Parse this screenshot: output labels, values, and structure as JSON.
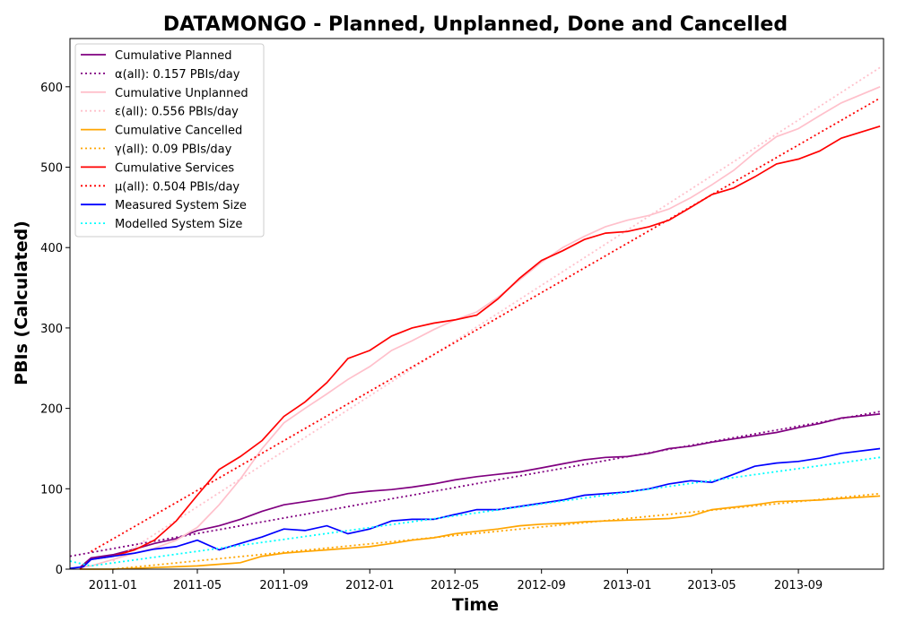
{
  "chart_data": {
    "type": "line",
    "title": "DATAMONGO - Planned, Unplanned, Done  and Cancelled",
    "xlabel": "Time",
    "ylabel": "PBIs (Calculated)",
    "x_start": "2010-11-01",
    "x_end": "2013-12-31",
    "ylim": [
      0,
      660
    ],
    "x_ticks": [
      "2011-01",
      "2011-05",
      "2011-09",
      "2012-01",
      "2012-05",
      "2012-09",
      "2013-01",
      "2013-05",
      "2013-09"
    ],
    "y_ticks": [
      0,
      100,
      200,
      300,
      400,
      500,
      600
    ],
    "grid": false,
    "legend_position": "top-left",
    "series": [
      {
        "name": "Cumulative Planned",
        "color": "#800080",
        "style": "solid",
        "points": [
          [
            "2010-11-15",
            2
          ],
          [
            "2010-12-01",
            14
          ],
          [
            "2011-01-01",
            18
          ],
          [
            "2011-02-01",
            25
          ],
          [
            "2011-03-01",
            32
          ],
          [
            "2011-04-01",
            38
          ],
          [
            "2011-05-01",
            48
          ],
          [
            "2011-06-01",
            54
          ],
          [
            "2011-07-01",
            62
          ],
          [
            "2011-08-01",
            72
          ],
          [
            "2011-09-01",
            80
          ],
          [
            "2011-10-01",
            84
          ],
          [
            "2011-11-01",
            88
          ],
          [
            "2011-12-01",
            94
          ],
          [
            "2012-01-01",
            97
          ],
          [
            "2012-02-01",
            99
          ],
          [
            "2012-03-01",
            102
          ],
          [
            "2012-04-01",
            106
          ],
          [
            "2012-05-01",
            111
          ],
          [
            "2012-06-01",
            115
          ],
          [
            "2012-07-01",
            118
          ],
          [
            "2012-08-01",
            121
          ],
          [
            "2012-09-01",
            126
          ],
          [
            "2012-10-01",
            131
          ],
          [
            "2012-11-01",
            136
          ],
          [
            "2012-12-01",
            139
          ],
          [
            "2013-01-01",
            140
          ],
          [
            "2013-02-01",
            144
          ],
          [
            "2013-03-01",
            150
          ],
          [
            "2013-04-01",
            153
          ],
          [
            "2013-05-01",
            158
          ],
          [
            "2013-06-01",
            162
          ],
          [
            "2013-07-01",
            166
          ],
          [
            "2013-08-01",
            170
          ],
          [
            "2013-09-01",
            176
          ],
          [
            "2013-10-01",
            181
          ],
          [
            "2013-11-01",
            188
          ],
          [
            "2013-12-26",
            193
          ]
        ]
      },
      {
        "name": "α(all): 0.157 PBIs/day",
        "color": "#800080",
        "style": "dotted",
        "points": [
          [
            "2010-11-01",
            16
          ],
          [
            "2013-12-26",
            196
          ]
        ]
      },
      {
        "name": "Cumulative Unplanned",
        "color": "#FFC0CB",
        "style": "solid",
        "points": [
          [
            "2010-11-15",
            2
          ],
          [
            "2010-12-01",
            4
          ],
          [
            "2011-01-01",
            12
          ],
          [
            "2011-02-01",
            20
          ],
          [
            "2011-03-01",
            26
          ],
          [
            "2011-04-01",
            36
          ],
          [
            "2011-05-01",
            52
          ],
          [
            "2011-06-01",
            80
          ],
          [
            "2011-07-01",
            112
          ],
          [
            "2011-08-01",
            150
          ],
          [
            "2011-09-01",
            182
          ],
          [
            "2011-10-01",
            200
          ],
          [
            "2011-11-01",
            218
          ],
          [
            "2011-12-01",
            236
          ],
          [
            "2012-01-01",
            252
          ],
          [
            "2012-02-01",
            272
          ],
          [
            "2012-03-01",
            284
          ],
          [
            "2012-04-01",
            298
          ],
          [
            "2012-05-01",
            310
          ],
          [
            "2012-06-01",
            320
          ],
          [
            "2012-07-01",
            338
          ],
          [
            "2012-08-01",
            360
          ],
          [
            "2012-09-01",
            382
          ],
          [
            "2012-10-01",
            400
          ],
          [
            "2012-11-01",
            414
          ],
          [
            "2012-12-01",
            426
          ],
          [
            "2013-01-01",
            434
          ],
          [
            "2013-02-01",
            440
          ],
          [
            "2013-03-01",
            448
          ],
          [
            "2013-04-01",
            462
          ],
          [
            "2013-05-01",
            478
          ],
          [
            "2013-06-01",
            496
          ],
          [
            "2013-07-01",
            518
          ],
          [
            "2013-08-01",
            538
          ],
          [
            "2013-09-01",
            548
          ],
          [
            "2013-10-01",
            564
          ],
          [
            "2013-11-01",
            580
          ],
          [
            "2013-12-26",
            600
          ]
        ]
      },
      {
        "name": "ε(all): 0.556 PBIs/day",
        "color": "#FFC0CB",
        "style": "dotted",
        "points": [
          [
            "2011-01-01",
            10
          ],
          [
            "2013-12-26",
            624
          ]
        ]
      },
      {
        "name": "Cumulative Cancelled",
        "color": "#FFA500",
        "style": "solid",
        "points": [
          [
            "2010-11-15",
            0
          ],
          [
            "2011-01-01",
            0
          ],
          [
            "2011-03-01",
            2
          ],
          [
            "2011-05-01",
            4
          ],
          [
            "2011-07-01",
            8
          ],
          [
            "2011-08-01",
            16
          ],
          [
            "2011-09-01",
            20
          ],
          [
            "2011-10-01",
            22
          ],
          [
            "2011-11-01",
            24
          ],
          [
            "2011-12-01",
            26
          ],
          [
            "2012-01-01",
            28
          ],
          [
            "2012-02-01",
            32
          ],
          [
            "2012-03-01",
            36
          ],
          [
            "2012-04-01",
            39
          ],
          [
            "2012-05-01",
            44
          ],
          [
            "2012-06-01",
            47
          ],
          [
            "2012-07-01",
            50
          ],
          [
            "2012-08-01",
            54
          ],
          [
            "2012-09-01",
            56
          ],
          [
            "2012-10-01",
            57
          ],
          [
            "2012-11-01",
            59
          ],
          [
            "2012-12-01",
            60
          ],
          [
            "2013-01-01",
            61
          ],
          [
            "2013-02-01",
            62
          ],
          [
            "2013-03-01",
            63
          ],
          [
            "2013-04-01",
            66
          ],
          [
            "2013-05-01",
            74
          ],
          [
            "2013-06-01",
            77
          ],
          [
            "2013-07-01",
            80
          ],
          [
            "2013-08-01",
            84
          ],
          [
            "2013-09-01",
            85
          ],
          [
            "2013-10-01",
            86
          ],
          [
            "2013-11-01",
            88
          ],
          [
            "2013-12-26",
            91
          ]
        ]
      },
      {
        "name": "γ(all): 0.09 PBIs/day",
        "color": "#FFA500",
        "style": "dotted",
        "points": [
          [
            "2011-01-01",
            0
          ],
          [
            "2013-12-26",
            94
          ]
        ]
      },
      {
        "name": "Cumulative Services",
        "color": "#FF0000",
        "style": "solid",
        "points": [
          [
            "2010-11-15",
            0
          ],
          [
            "2010-12-01",
            12
          ],
          [
            "2011-01-01",
            16
          ],
          [
            "2011-02-01",
            24
          ],
          [
            "2011-03-01",
            36
          ],
          [
            "2011-04-01",
            60
          ],
          [
            "2011-05-01",
            92
          ],
          [
            "2011-06-01",
            124
          ],
          [
            "2011-07-01",
            140
          ],
          [
            "2011-08-01",
            160
          ],
          [
            "2011-09-01",
            190
          ],
          [
            "2011-10-01",
            208
          ],
          [
            "2011-11-01",
            232
          ],
          [
            "2011-12-01",
            262
          ],
          [
            "2012-01-01",
            272
          ],
          [
            "2012-02-01",
            290
          ],
          [
            "2012-03-01",
            300
          ],
          [
            "2012-04-01",
            306
          ],
          [
            "2012-05-01",
            310
          ],
          [
            "2012-06-01",
            316
          ],
          [
            "2012-07-01",
            336
          ],
          [
            "2012-08-01",
            362
          ],
          [
            "2012-09-01",
            384
          ],
          [
            "2012-10-01",
            396
          ],
          [
            "2012-11-01",
            410
          ],
          [
            "2012-12-01",
            418
          ],
          [
            "2013-01-01",
            420
          ],
          [
            "2013-02-01",
            426
          ],
          [
            "2013-03-01",
            434
          ],
          [
            "2013-04-01",
            450
          ],
          [
            "2013-05-01",
            466
          ],
          [
            "2013-06-01",
            474
          ],
          [
            "2013-07-01",
            488
          ],
          [
            "2013-08-01",
            504
          ],
          [
            "2013-09-01",
            510
          ],
          [
            "2013-10-01",
            520
          ],
          [
            "2013-11-01",
            536
          ],
          [
            "2013-12-26",
            551
          ]
        ]
      },
      {
        "name": "μ(all): 0.504 PBIs/day",
        "color": "#FF0000",
        "style": "dotted",
        "points": [
          [
            "2010-12-01",
            22
          ],
          [
            "2013-12-26",
            586
          ]
        ]
      },
      {
        "name": "Measured System Size",
        "color": "#0000FF",
        "style": "solid",
        "points": [
          [
            "2010-11-01",
            1
          ],
          [
            "2010-11-20",
            3
          ],
          [
            "2010-12-01",
            12
          ],
          [
            "2011-01-01",
            16
          ],
          [
            "2011-02-01",
            20
          ],
          [
            "2011-03-01",
            25
          ],
          [
            "2011-04-01",
            28
          ],
          [
            "2011-05-01",
            36
          ],
          [
            "2011-06-01",
            24
          ],
          [
            "2011-07-01",
            32
          ],
          [
            "2011-08-01",
            40
          ],
          [
            "2011-09-01",
            50
          ],
          [
            "2011-10-01",
            48
          ],
          [
            "2011-11-01",
            54
          ],
          [
            "2011-12-01",
            44
          ],
          [
            "2012-01-01",
            50
          ],
          [
            "2012-02-01",
            60
          ],
          [
            "2012-03-01",
            62
          ],
          [
            "2012-04-01",
            62
          ],
          [
            "2012-05-01",
            68
          ],
          [
            "2012-06-01",
            74
          ],
          [
            "2012-07-01",
            74
          ],
          [
            "2012-08-01",
            78
          ],
          [
            "2012-09-01",
            82
          ],
          [
            "2012-10-01",
            86
          ],
          [
            "2012-11-01",
            92
          ],
          [
            "2012-12-01",
            94
          ],
          [
            "2013-01-01",
            96
          ],
          [
            "2013-02-01",
            100
          ],
          [
            "2013-03-01",
            106
          ],
          [
            "2013-04-01",
            110
          ],
          [
            "2013-05-01",
            108
          ],
          [
            "2013-06-01",
            118
          ],
          [
            "2013-07-01",
            128
          ],
          [
            "2013-08-01",
            132
          ],
          [
            "2013-09-01",
            134
          ],
          [
            "2013-10-01",
            138
          ],
          [
            "2013-11-01",
            144
          ],
          [
            "2013-12-26",
            150
          ]
        ]
      },
      {
        "name": "Modelled System Size",
        "color": "#00FFFF",
        "style": "dotted",
        "points": [
          [
            "2010-11-01",
            10
          ],
          [
            "2010-12-01",
            4
          ],
          [
            "2013-12-26",
            139
          ]
        ]
      }
    ]
  }
}
